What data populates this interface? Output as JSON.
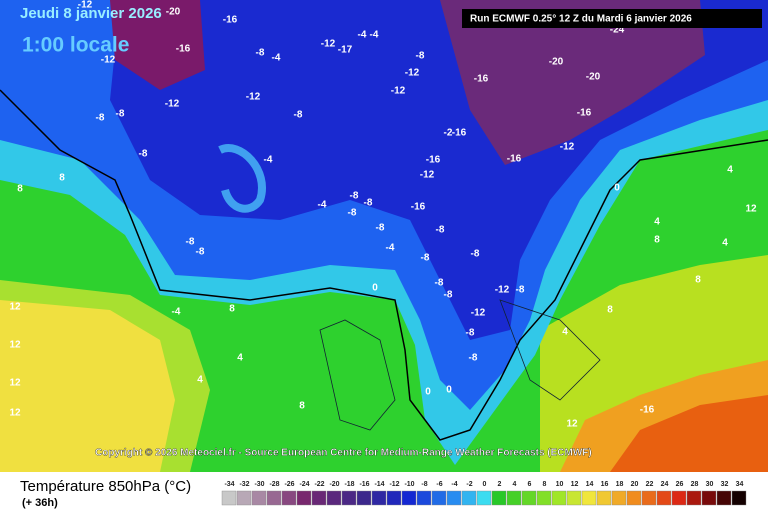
{
  "header": {
    "date": "Jeudi 8 janvier 2026",
    "time": "1:00 locale",
    "run": "Run ECMWF 0.25° 12 Z du Mardi 6 janvier 2026"
  },
  "copyright": "Copyright © 2026 Meteociel.fr - Source European Centre for Medium-Range Weather Forecasts (ECMWF)",
  "legend": {
    "title": "Température 850hPa (°C)",
    "lead": "(+ 36h)",
    "scale": [
      -34,
      -32,
      -30,
      -28,
      -26,
      -24,
      -22,
      -20,
      -18,
      -16,
      -14,
      -12,
      -10,
      -8,
      -6,
      -4,
      -2,
      0,
      2,
      4,
      6,
      8,
      10,
      12,
      14,
      16,
      18,
      20,
      22,
      24,
      26,
      28,
      30,
      32,
      34
    ]
  },
  "contour_labels": [
    -12,
    -20,
    -16,
    -16,
    -12,
    -8,
    -4,
    -12,
    -17,
    -4,
    -4,
    -8,
    -12,
    -24,
    -20,
    -20,
    -16,
    -16,
    -12,
    -16,
    -16,
    -12,
    -16,
    -16,
    -2,
    -12,
    -12,
    -8,
    -12,
    -8,
    -8,
    -8,
    -4,
    -4,
    -8,
    -8,
    -8,
    -8,
    -8,
    -8,
    -4,
    -8,
    -8,
    -8,
    -8,
    -8,
    -12,
    -12,
    -8,
    -8,
    0,
    -8,
    8,
    8,
    12,
    12,
    12,
    12,
    -4,
    8,
    4,
    4,
    8,
    0,
    0,
    4,
    8,
    4,
    12,
    8,
    12,
    -16,
    0,
    4,
    4,
    8
  ]
}
